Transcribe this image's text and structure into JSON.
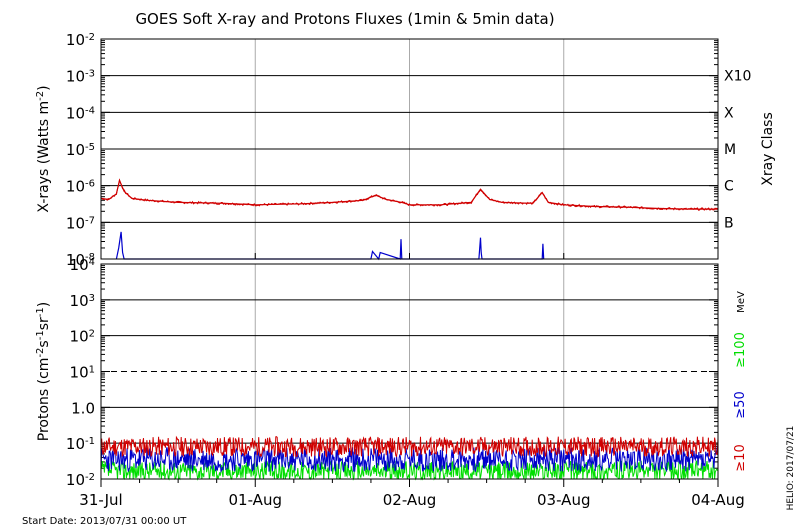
{
  "chart_data": [
    {
      "type": "line",
      "title": "GOES Soft X-ray and Protons Fluxes   (1min & 5min data)",
      "ylabel": "X-rays (Watts m",
      "ylabel_sup": "-2",
      "ylabel_close": ")",
      "y_scale": "log",
      "ylim": [
        1e-08,
        0.01
      ],
      "y_ticks": [
        {
          "base": "10",
          "exp": "-2",
          "value": 0.01
        },
        {
          "base": "10",
          "exp": "-3",
          "value": 0.001
        },
        {
          "base": "10",
          "exp": "-4",
          "value": 0.0001
        },
        {
          "base": "10",
          "exp": "-5",
          "value": 1e-05
        },
        {
          "base": "10",
          "exp": "-6",
          "value": 1e-06
        },
        {
          "base": "10",
          "exp": "-7",
          "value": 1e-07
        },
        {
          "base": "10",
          "exp": "-8",
          "value": 1e-08
        }
      ],
      "right_axis_label": "Xray Class",
      "class_labels": [
        {
          "label": "X10",
          "value": 0.001
        },
        {
          "label": "X",
          "value": 0.0001
        },
        {
          "label": "M",
          "value": 1e-05
        },
        {
          "label": "C",
          "value": 1e-06
        },
        {
          "label": "B",
          "value": 1e-07
        }
      ],
      "grid": true,
      "series": [
        {
          "color": "#d00000",
          "x": [
            0,
            0.05,
            0.1,
            0.12,
            0.15,
            0.2,
            0.3,
            0.5,
            0.8,
            1.0,
            1.3,
            1.5,
            1.7,
            1.78,
            1.85,
            1.95,
            2.0,
            2.2,
            2.4,
            2.46,
            2.52,
            2.6,
            2.8,
            2.86,
            2.9,
            3.0,
            3.2,
            3.4,
            3.6,
            3.8,
            4.0
          ],
          "y": [
            4.5e-07,
            4.2e-07,
            6e-07,
            1.4e-06,
            7e-07,
            4.5e-07,
            4e-07,
            3.5e-07,
            3.3e-07,
            3e-07,
            3.2e-07,
            3.5e-07,
            4e-07,
            5.5e-07,
            4.2e-07,
            3.5e-07,
            3e-07,
            3e-07,
            3.5e-07,
            8e-07,
            4.2e-07,
            3.5e-07,
            3.3e-07,
            6.5e-07,
            3.5e-07,
            3e-07,
            2.7e-07,
            2.6e-07,
            2.4e-07,
            2.3e-07,
            2.3e-07
          ]
        },
        {
          "color": "#0000cc",
          "x": [
            0.1,
            0.115,
            0.13,
            0.135,
            0.14,
            0.15,
            1.75,
            1.76,
            1.8,
            1.81,
            1.94,
            1.945,
            1.95,
            2.45,
            2.46,
            2.465,
            2.47,
            2.86,
            2.865,
            2.87
          ],
          "y": [
            1e-08,
            2e-08,
            5.5e-08,
            3e-08,
            1.5e-08,
            1e-08,
            1e-08,
            1.6e-08,
            1e-08,
            1.5e-08,
            1e-08,
            3.5e-08,
            1e-08,
            1e-08,
            3.8e-08,
            1.5e-08,
            1e-08,
            1e-08,
            2.6e-08,
            1e-08
          ]
        }
      ]
    },
    {
      "type": "line",
      "ylabel": "Protons (cm",
      "ylabel_sup1": "-2",
      "ylabel_mid": "s",
      "ylabel_sup2": "-1",
      "ylabel_mid2": "sr",
      "ylabel_sup3": "-1",
      "ylabel_close": ")",
      "y_scale": "log",
      "ylim": [
        0.01,
        10000
      ],
      "y_ticks": [
        {
          "base": "10",
          "exp": "4",
          "value": 10000
        },
        {
          "base": "10",
          "exp": "3",
          "value": 1000
        },
        {
          "base": "10",
          "exp": "2",
          "value": 100
        },
        {
          "base": "10",
          "exp": "1",
          "value": 10
        },
        {
          "base": "1.0",
          "exp": "",
          "value": 1
        },
        {
          "base": "10",
          "exp": "-1",
          "value": 0.1
        },
        {
          "base": "10",
          "exp": "-2",
          "value": 0.01
        }
      ],
      "threshold": 10,
      "grid": true,
      "x_ticks": [
        "31-Jul",
        "01-Aug",
        "02-Aug",
        "03-Aug",
        "04-Aug"
      ],
      "xlim": [
        0,
        4
      ],
      "legend": {
        "unit": "MeV",
        "entries": [
          {
            "label": "≥100",
            "color": "#00dd00"
          },
          {
            "label": "≥50",
            "color": "#0000cc"
          },
          {
            "label": "≥10",
            "color": "#d00000"
          }
        ]
      },
      "series": [
        {
          "label": "≥10",
          "color": "#d00000",
          "baseline": 0.08,
          "spread": 1.9,
          "seed": 11
        },
        {
          "label": "≥50",
          "color": "#0000cc",
          "baseline": 0.035,
          "spread": 2.2,
          "seed": 23
        },
        {
          "label": "≥100",
          "color": "#00dd00",
          "baseline": 0.017,
          "spread": 1.9,
          "seed": 37
        }
      ]
    }
  ],
  "footer": {
    "start_date": "Start Date: 2013/07/31 00:00 UT",
    "stamp": "HELIO: 2017/07/21"
  }
}
